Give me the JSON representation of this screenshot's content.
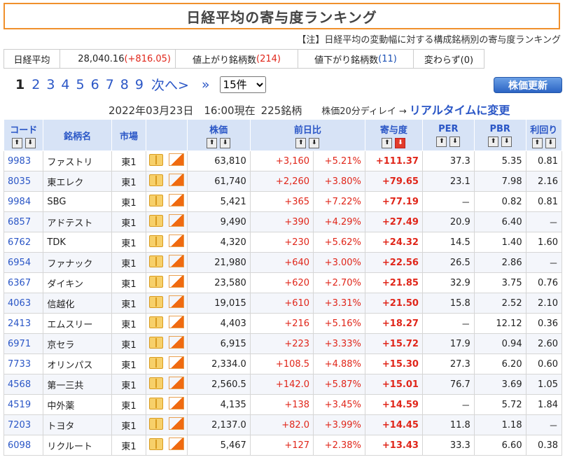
{
  "title": "日経平均の寄与度ランキング",
  "note": "【注】日経平均の変動幅に対する構成銘柄別の寄与度ランキング",
  "summary": {
    "label": "日経平均",
    "value": "28,040.16",
    "change": "(+816.05)",
    "up_label": "値上がり銘柄数",
    "up_count": "(214)",
    "down_label": "値下がり銘柄数",
    "down_count": "(11)",
    "flat_label": "変わらず(0)"
  },
  "pager": {
    "current": "1",
    "pages": [
      "2",
      "3",
      "4",
      "5",
      "6",
      "7",
      "8",
      "9"
    ],
    "next": "次へ>",
    "last": "»",
    "per_page": "15件"
  },
  "update_button": "株価更新",
  "status": {
    "datetime": "2022年03月23日　16:00現在",
    "count": "225銘柄",
    "delay": "株価20分ディレイ →",
    "realtime": "リアルタイムに変更"
  },
  "columns": {
    "code": "コード",
    "name": "銘柄名",
    "market": "市場",
    "price": "株価",
    "change": "前日比",
    "contribution": "寄与度",
    "per": "PER",
    "pbr": "PBR",
    "yield": "利回り"
  },
  "sort_up": "⬆",
  "sort_down": "⬇",
  "rows": [
    {
      "code": "9983",
      "name": "ファストリ",
      "market": "東1",
      "price": "63,810",
      "chg": "+3,160",
      "pct": "+5.21%",
      "contrib": "+111.37",
      "per": "37.3",
      "pbr": "5.35",
      "yield": "0.81"
    },
    {
      "code": "8035",
      "name": "東エレク",
      "market": "東1",
      "price": "61,740",
      "chg": "+2,260",
      "pct": "+3.80%",
      "contrib": "+79.65",
      "per": "23.1",
      "pbr": "7.98",
      "yield": "2.16"
    },
    {
      "code": "9984",
      "name": "SBG",
      "market": "東1",
      "price": "5,421",
      "chg": "+365",
      "pct": "+7.22%",
      "contrib": "+77.19",
      "per": "－",
      "pbr": "0.82",
      "yield": "0.81"
    },
    {
      "code": "6857",
      "name": "アドテスト",
      "market": "東1",
      "price": "9,490",
      "chg": "+390",
      "pct": "+4.29%",
      "contrib": "+27.49",
      "per": "20.9",
      "pbr": "6.40",
      "yield": "－"
    },
    {
      "code": "6762",
      "name": "TDK",
      "market": "東1",
      "price": "4,320",
      "chg": "+230",
      "pct": "+5.62%",
      "contrib": "+24.32",
      "per": "14.5",
      "pbr": "1.40",
      "yield": "1.60"
    },
    {
      "code": "6954",
      "name": "ファナック",
      "market": "東1",
      "price": "21,980",
      "chg": "+640",
      "pct": "+3.00%",
      "contrib": "+22.56",
      "per": "26.5",
      "pbr": "2.86",
      "yield": "－"
    },
    {
      "code": "6367",
      "name": "ダイキン",
      "market": "東1",
      "price": "23,580",
      "chg": "+620",
      "pct": "+2.70%",
      "contrib": "+21.85",
      "per": "32.9",
      "pbr": "3.75",
      "yield": "0.76"
    },
    {
      "code": "4063",
      "name": "信越化",
      "market": "東1",
      "price": "19,015",
      "chg": "+610",
      "pct": "+3.31%",
      "contrib": "+21.50",
      "per": "15.8",
      "pbr": "2.52",
      "yield": "2.10"
    },
    {
      "code": "2413",
      "name": "エムスリー",
      "market": "東1",
      "price": "4,403",
      "chg": "+216",
      "pct": "+5.16%",
      "contrib": "+18.27",
      "per": "－",
      "pbr": "12.12",
      "yield": "0.36"
    },
    {
      "code": "6971",
      "name": "京セラ",
      "market": "東1",
      "price": "6,915",
      "chg": "+223",
      "pct": "+3.33%",
      "contrib": "+15.72",
      "per": "17.9",
      "pbr": "0.94",
      "yield": "2.60"
    },
    {
      "code": "7733",
      "name": "オリンパス",
      "market": "東1",
      "price": "2,334.0",
      "chg": "+108.5",
      "pct": "+4.88%",
      "contrib": "+15.30",
      "per": "27.3",
      "pbr": "6.20",
      "yield": "0.60"
    },
    {
      "code": "4568",
      "name": "第一三共",
      "market": "東1",
      "price": "2,560.5",
      "chg": "+142.0",
      "pct": "+5.87%",
      "contrib": "+15.01",
      "per": "76.7",
      "pbr": "3.69",
      "yield": "1.05"
    },
    {
      "code": "4519",
      "name": "中外薬",
      "market": "東1",
      "price": "4,135",
      "chg": "+138",
      "pct": "+3.45%",
      "contrib": "+14.59",
      "per": "－",
      "pbr": "5.72",
      "yield": "1.84"
    },
    {
      "code": "7203",
      "name": "トヨタ",
      "market": "東1",
      "price": "2,137.0",
      "chg": "+82.0",
      "pct": "+3.99%",
      "contrib": "+14.45",
      "per": "11.8",
      "pbr": "1.18",
      "yield": "－"
    },
    {
      "code": "6098",
      "name": "リクルート",
      "market": "東1",
      "price": "5,467",
      "chg": "+127",
      "pct": "+2.38%",
      "contrib": "+13.43",
      "per": "33.3",
      "pbr": "6.60",
      "yield": "0.38"
    }
  ]
}
